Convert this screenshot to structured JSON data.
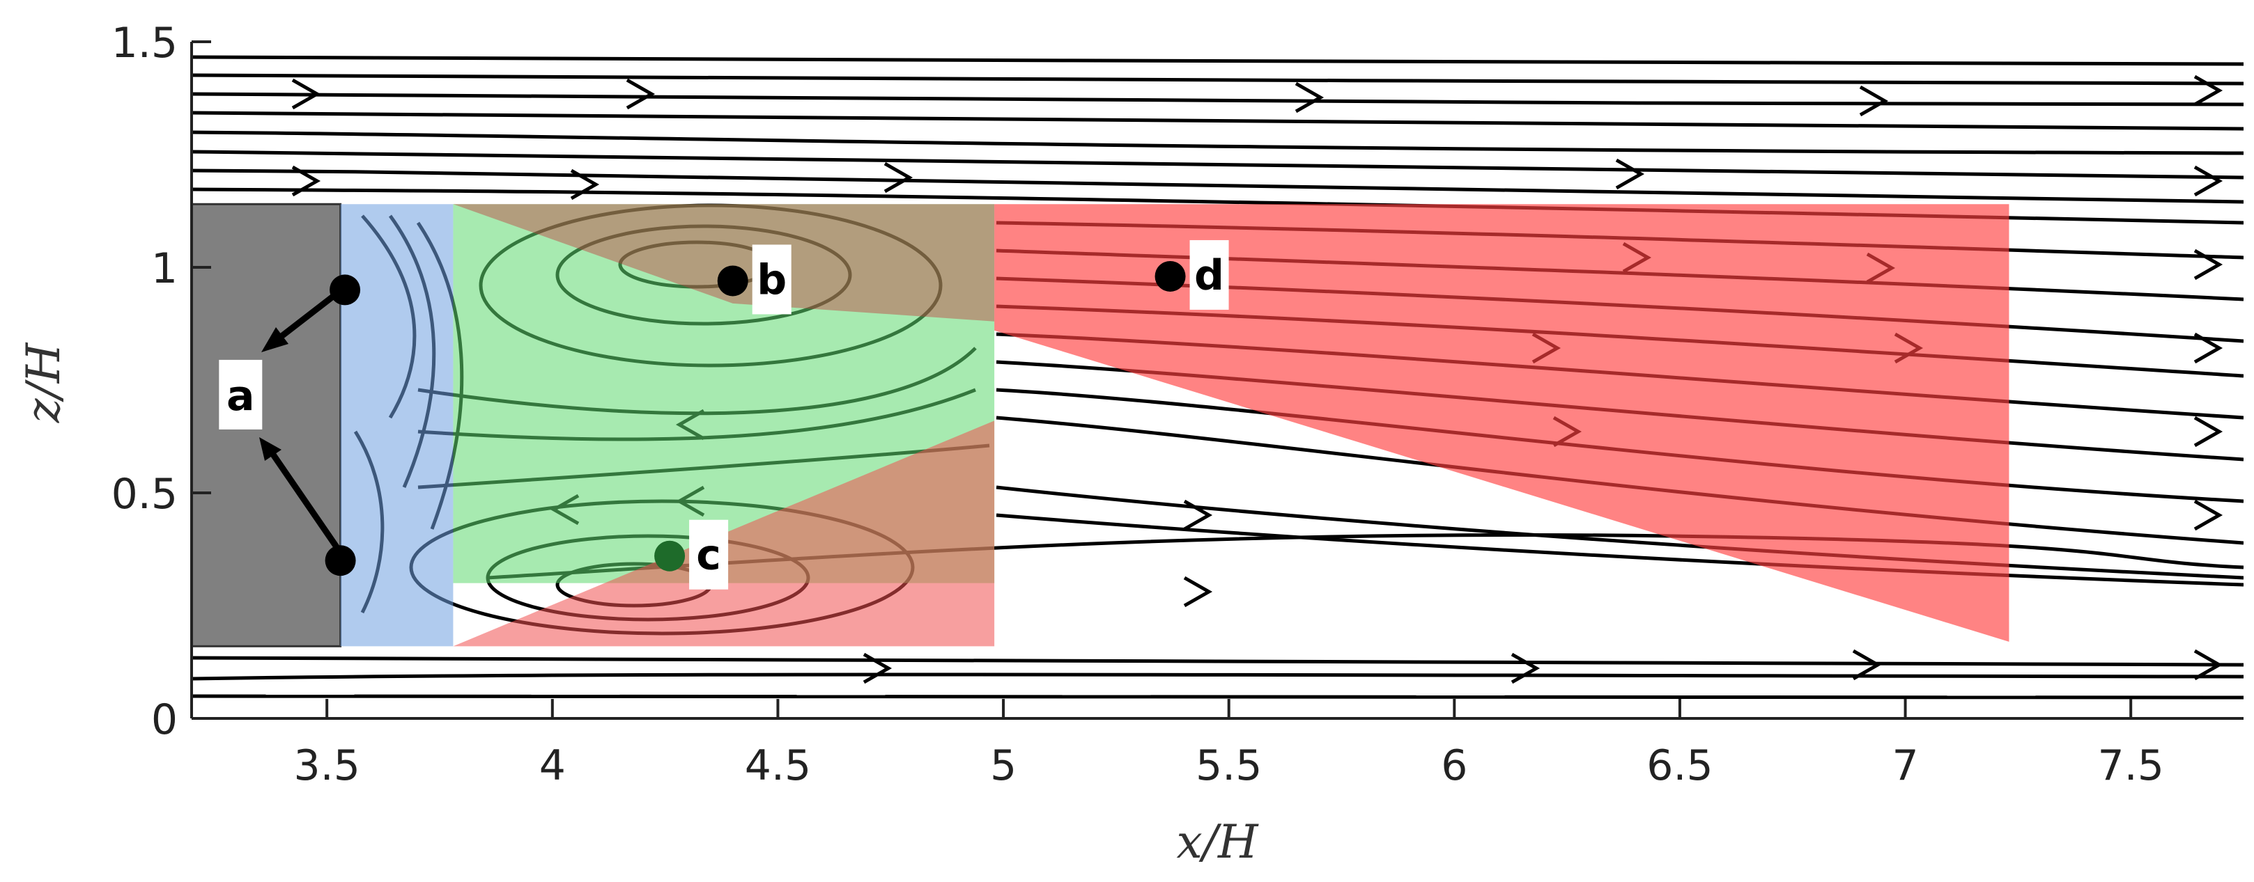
{
  "chart_data": {
    "type": "streamline",
    "title": "",
    "xlabel": "x/H",
    "ylabel": "z/H",
    "xlim": [
      3.2,
      7.75
    ],
    "ylim": [
      0,
      1.5
    ],
    "xticks": [
      {
        "value": 3.5,
        "label": "3.5"
      },
      {
        "value": 4,
        "label": "4"
      },
      {
        "value": 4.5,
        "label": "4.5"
      },
      {
        "value": 5,
        "label": "5"
      },
      {
        "value": 5.5,
        "label": "5.5"
      },
      {
        "value": 6,
        "label": "6"
      },
      {
        "value": 6.5,
        "label": "6.5"
      },
      {
        "value": 7,
        "label": "7"
      },
      {
        "value": 7.5,
        "label": "7.5"
      }
    ],
    "yticks": [
      {
        "value": 0,
        "label": "0"
      },
      {
        "value": 0.5,
        "label": "0.5"
      },
      {
        "value": 1,
        "label": "1"
      },
      {
        "value": 1.5,
        "label": "1.5"
      }
    ],
    "obstacle": {
      "x": [
        3.2,
        3.53
      ],
      "z": [
        0.16,
        1.14
      ],
      "color": "#808080"
    },
    "regions": [
      {
        "id": "blue",
        "color": "#6fa0e0",
        "opacity": 0.55,
        "polygon": [
          [
            3.53,
            1.14
          ],
          [
            3.78,
            1.14
          ],
          [
            3.78,
            0.16
          ],
          [
            3.53,
            0.16
          ]
        ]
      },
      {
        "id": "green",
        "color": "#5fd96f",
        "opacity": 0.55,
        "polygon": [
          [
            3.78,
            1.14
          ],
          [
            4.98,
            1.14
          ],
          [
            4.98,
            0.3
          ],
          [
            3.78,
            0.3
          ]
        ]
      },
      {
        "id": "red-lower",
        "color": "#f05050",
        "opacity": 0.55,
        "polygon": [
          [
            3.78,
            0.16
          ],
          [
            4.98,
            0.16
          ],
          [
            4.98,
            0.66
          ],
          [
            3.78,
            0.16
          ]
        ]
      },
      {
        "id": "olive-upper",
        "color": "#c04040",
        "opacity": 0.45,
        "polygon": [
          [
            3.78,
            1.14
          ],
          [
            4.98,
            1.14
          ],
          [
            4.98,
            0.88
          ],
          [
            4.4,
            0.92
          ],
          [
            3.78,
            1.14
          ]
        ]
      },
      {
        "id": "red-wake",
        "color": "#ff4040",
        "opacity": 0.65,
        "polygon": [
          [
            4.98,
            1.14
          ],
          [
            7.23,
            1.14
          ],
          [
            7.23,
            0.17
          ],
          [
            4.98,
            0.86
          ]
        ]
      }
    ],
    "points": [
      {
        "label": "a",
        "x": 3.54,
        "z": 0.95,
        "color": "#000000"
      },
      {
        "label": "",
        "x": 3.53,
        "z": 0.35,
        "color": "#000000"
      },
      {
        "label": "b",
        "x": 4.4,
        "z": 0.97,
        "color": "#000000"
      },
      {
        "label": "c",
        "x": 4.26,
        "z": 0.36,
        "color": "#1e6b2a"
      },
      {
        "label": "d",
        "x": 5.37,
        "z": 0.98,
        "color": "#000000"
      }
    ],
    "label_a": {
      "text": "a",
      "x": 3.27,
      "z": 0.71
    }
  }
}
